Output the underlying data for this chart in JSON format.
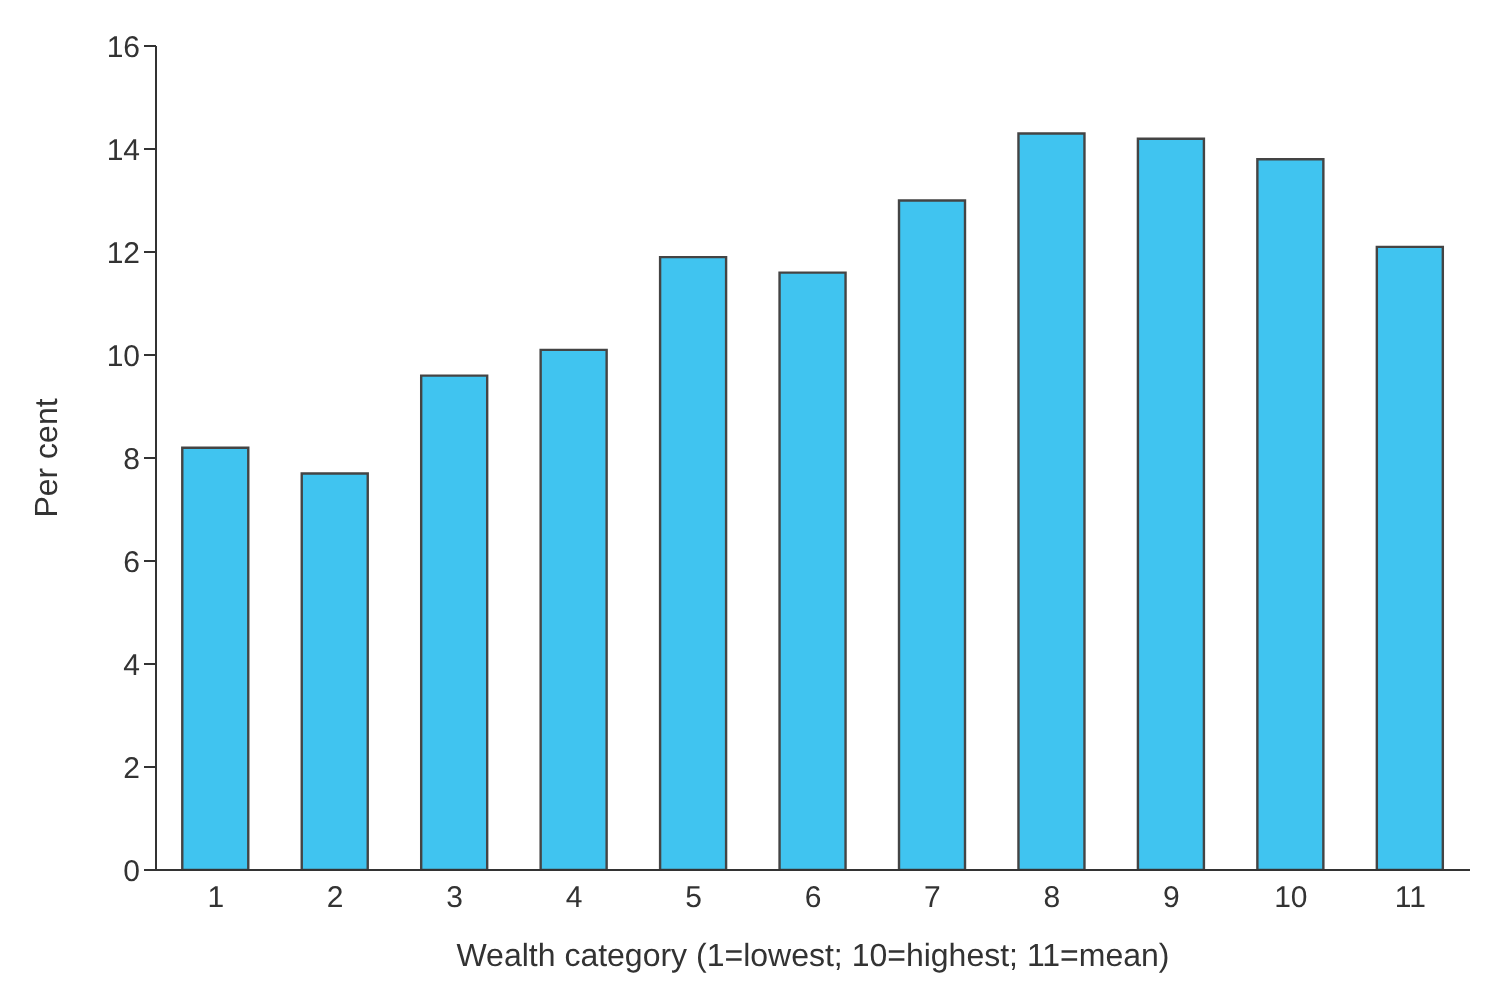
{
  "chart_data": {
    "type": "bar",
    "xlabel": "Wealth category (1=lowest; 10=highest; 11=mean)",
    "ylabel": "Per cent",
    "categories": [
      "1",
      "2",
      "3",
      "4",
      "5",
      "6",
      "7",
      "8",
      "9",
      "10",
      "11"
    ],
    "values": [
      8.2,
      7.7,
      9.6,
      10.1,
      11.9,
      11.6,
      13.0,
      14.3,
      14.2,
      13.8,
      12.1
    ],
    "color": "#40c4f0",
    "ylim": [
      0,
      16
    ],
    "yticks": [
      0,
      2,
      4,
      6,
      8,
      10,
      12,
      14,
      16
    ],
    "grid": false,
    "legend": false
  }
}
